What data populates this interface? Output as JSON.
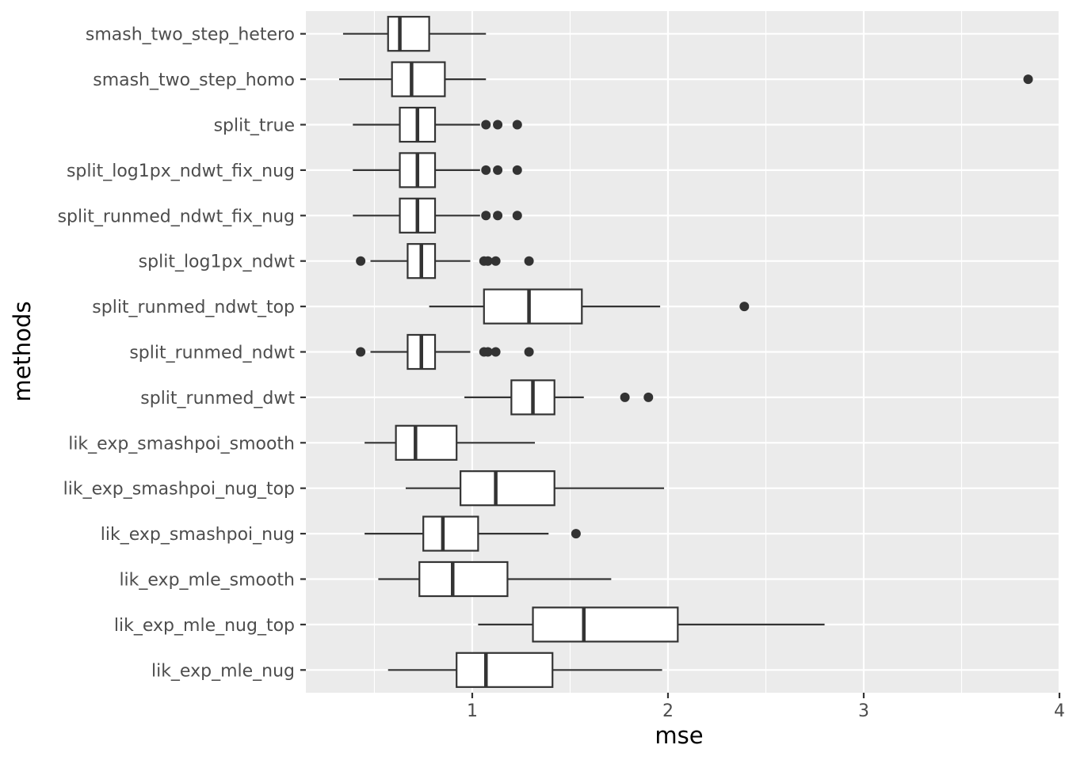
{
  "chart_data": {
    "type": "boxplot",
    "orientation": "horizontal",
    "xlabel": "mse",
    "ylabel": "methods",
    "xlim": [
      0.15,
      4.0
    ],
    "x_ticks": [
      1,
      2,
      3,
      4
    ],
    "x_tick_labels": [
      "1",
      "2",
      "3",
      "4"
    ],
    "x_minor_ticks": [
      0.5,
      1.5,
      2.5,
      3.5
    ],
    "grid": true,
    "colors": {
      "panel": "#ebebeb",
      "grid": "#ffffff",
      "box_fill": "#ffffff",
      "box_stroke": "#333333",
      "outlier": "#333333"
    },
    "categories": [
      "smash_two_step_hetero",
      "smash_two_step_homo",
      "split_true",
      "split_log1px_ndwt_fix_nug",
      "split_runmed_ndwt_fix_nug",
      "split_log1px_ndwt",
      "split_runmed_ndwt_top",
      "split_runmed_ndwt",
      "split_runmed_dwt",
      "lik_exp_smashpoi_smooth",
      "lik_exp_smashpoi_nug_top",
      "lik_exp_smashpoi_nug",
      "lik_exp_mle_smooth",
      "lik_exp_mle_nug_top",
      "lik_exp_mle_nug"
    ],
    "boxes": [
      {
        "category": "smash_two_step_hetero",
        "min": 0.34,
        "q1": 0.57,
        "median": 0.63,
        "q3": 0.78,
        "max": 1.07,
        "outliers": []
      },
      {
        "category": "smash_two_step_homo",
        "min": 0.32,
        "q1": 0.59,
        "median": 0.69,
        "q3": 0.86,
        "max": 1.07,
        "outliers": [
          3.84
        ]
      },
      {
        "category": "split_true",
        "min": 0.39,
        "q1": 0.63,
        "median": 0.72,
        "q3": 0.81,
        "max": 1.04,
        "outliers": [
          1.07,
          1.13,
          1.23
        ]
      },
      {
        "category": "split_log1px_ndwt_fix_nug",
        "min": 0.39,
        "q1": 0.63,
        "median": 0.72,
        "q3": 0.81,
        "max": 1.04,
        "outliers": [
          1.07,
          1.13,
          1.23
        ]
      },
      {
        "category": "split_runmed_ndwt_fix_nug",
        "min": 0.39,
        "q1": 0.63,
        "median": 0.72,
        "q3": 0.81,
        "max": 1.04,
        "outliers": [
          1.07,
          1.13,
          1.23
        ]
      },
      {
        "category": "split_log1px_ndwt",
        "min": 0.48,
        "q1": 0.67,
        "median": 0.74,
        "q3": 0.81,
        "max": 0.99,
        "outliers": [
          0.43,
          1.06,
          1.08,
          1.12,
          1.29
        ]
      },
      {
        "category": "split_runmed_ndwt_top",
        "min": 0.78,
        "q1": 1.06,
        "median": 1.29,
        "q3": 1.56,
        "max": 1.96,
        "outliers": [
          2.39
        ]
      },
      {
        "category": "split_runmed_ndwt",
        "min": 0.48,
        "q1": 0.67,
        "median": 0.74,
        "q3": 0.81,
        "max": 0.99,
        "outliers": [
          0.43,
          1.06,
          1.08,
          1.12,
          1.29
        ]
      },
      {
        "category": "split_runmed_dwt",
        "min": 0.96,
        "q1": 1.2,
        "median": 1.31,
        "q3": 1.42,
        "max": 1.57,
        "outliers": [
          1.78,
          1.9
        ]
      },
      {
        "category": "lik_exp_smashpoi_smooth",
        "min": 0.45,
        "q1": 0.61,
        "median": 0.71,
        "q3": 0.92,
        "max": 1.32,
        "outliers": []
      },
      {
        "category": "lik_exp_smashpoi_nug_top",
        "min": 0.66,
        "q1": 0.94,
        "median": 1.12,
        "q3": 1.42,
        "max": 1.98,
        "outliers": []
      },
      {
        "category": "lik_exp_smashpoi_nug",
        "min": 0.45,
        "q1": 0.75,
        "median": 0.85,
        "q3": 1.03,
        "max": 1.39,
        "outliers": [
          1.53
        ]
      },
      {
        "category": "lik_exp_mle_smooth",
        "min": 0.52,
        "q1": 0.73,
        "median": 0.9,
        "q3": 1.18,
        "max": 1.71,
        "outliers": []
      },
      {
        "category": "lik_exp_mle_nug_top",
        "min": 1.03,
        "q1": 1.31,
        "median": 1.57,
        "q3": 2.05,
        "max": 2.8,
        "outliers": []
      },
      {
        "category": "lik_exp_mle_nug",
        "min": 0.57,
        "q1": 0.92,
        "median": 1.07,
        "q3": 1.41,
        "max": 1.97,
        "outliers": []
      }
    ]
  }
}
